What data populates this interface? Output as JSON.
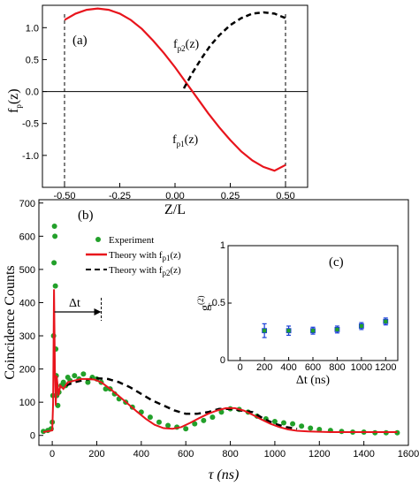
{
  "chart_data": [
    {
      "panel_label": "(a)",
      "type": "line",
      "xlabel": "Z/L",
      "ylabel_main": "f",
      "ylabel_sub": "p",
      "ylabel_tail": "(z)",
      "xlim": [
        -0.6,
        0.6
      ],
      "ylim": [
        -1.5,
        1.35
      ],
      "xticks": [
        -0.5,
        -0.25,
        0.0,
        0.25,
        0.5
      ],
      "xtick_labels": [
        "-0.50",
        "-0.25",
        "0.00",
        "0.25",
        "0.50"
      ],
      "yticks": [
        -1.0,
        -0.5,
        0.0,
        0.5,
        1.0
      ],
      "ytick_labels": [
        "-1.0",
        "-0.5",
        "0.0",
        "0.5",
        "1.0"
      ],
      "vlines": [
        -0.5,
        0.5
      ],
      "hline": 0,
      "series": [
        {
          "label_main": "f",
          "label_sub": "p1",
          "label_tail": "(z)",
          "color": "#e8141c",
          "style": "solid",
          "x": [
            -0.5,
            -0.45,
            -0.4,
            -0.35,
            -0.3,
            -0.25,
            -0.2,
            -0.15,
            -0.1,
            -0.05,
            0.0,
            0.05,
            0.1,
            0.15,
            0.2,
            0.25,
            0.3,
            0.35,
            0.4,
            0.45,
            0.5
          ],
          "y": [
            1.12,
            1.22,
            1.28,
            1.3,
            1.28,
            1.22,
            1.12,
            0.98,
            0.8,
            0.6,
            0.38,
            0.14,
            -0.1,
            -0.34,
            -0.56,
            -0.76,
            -0.94,
            -1.08,
            -1.18,
            -1.24,
            -1.15
          ]
        },
        {
          "label_main": "f",
          "label_sub": "p2",
          "label_tail": "(z)",
          "color": "#000000",
          "style": "dashed",
          "x": [
            0.04,
            0.08,
            0.12,
            0.16,
            0.2,
            0.25,
            0.3,
            0.35,
            0.4,
            0.45,
            0.5
          ],
          "y": [
            0.05,
            0.3,
            0.52,
            0.72,
            0.88,
            1.04,
            1.15,
            1.22,
            1.24,
            1.22,
            1.15
          ]
        }
      ]
    },
    {
      "panel_label": "(b)",
      "type": "scatter",
      "xlabel": "τ (ns)",
      "ylabel": "Coincidence Counts",
      "xlim": [
        -60,
        1600
      ],
      "ylim": [
        -30,
        710
      ],
      "xticks": [
        0,
        200,
        400,
        600,
        800,
        1000,
        1200,
        1400,
        1600
      ],
      "yticks": [
        0,
        100,
        200,
        300,
        400,
        500,
        600,
        700
      ],
      "annotation": "Δt",
      "annotation_arrow_x": [
        10,
        220
      ],
      "annotation_arrow_y": 372,
      "legend": [
        {
          "label": "Experiment",
          "marker": "dot",
          "color": "#22a02a"
        },
        {
          "label_main": "Theory with f",
          "label_sub": "p1",
          "label_tail": "(z)",
          "color": "#e8141c",
          "style": "solid"
        },
        {
          "label_main": "Theory with f",
          "label_sub": "p2",
          "label_tail": "(z)",
          "color": "#000000",
          "style": "dashed"
        }
      ],
      "series": [
        {
          "name": "Experiment",
          "color": "#22a02a",
          "x": [
            -40,
            -20,
            -5,
            0,
            3,
            6,
            8,
            10,
            12,
            14,
            16,
            18,
            20,
            25,
            30,
            40,
            50,
            60,
            70,
            80,
            100,
            120,
            140,
            160,
            180,
            200,
            220,
            240,
            260,
            280,
            300,
            330,
            360,
            400,
            440,
            480,
            520,
            560,
            600,
            640,
            680,
            720,
            760,
            800,
            840,
            880,
            920,
            960,
            1000,
            1040,
            1080,
            1120,
            1160,
            1200,
            1250,
            1300,
            1350,
            1400,
            1450,
            1500,
            1550
          ],
          "y": [
            12,
            15,
            20,
            40,
            120,
            300,
            520,
            630,
            600,
            450,
            260,
            180,
            120,
            90,
            130,
            150,
            160,
            150,
            175,
            165,
            180,
            170,
            185,
            160,
            175,
            170,
            160,
            140,
            140,
            125,
            110,
            100,
            85,
            70,
            55,
            40,
            30,
            25,
            20,
            35,
            45,
            55,
            70,
            80,
            78,
            70,
            58,
            50,
            42,
            38,
            35,
            28,
            22,
            18,
            15,
            12,
            10,
            10,
            8,
            8,
            8
          ]
        },
        {
          "name": "Theory with f_p1(z)",
          "color": "#e8141c",
          "style": "solid",
          "x": [
            -40,
            0,
            4,
            8,
            12,
            16,
            20,
            28,
            36,
            50,
            70,
            100,
            130,
            160,
            190,
            220,
            260,
            300,
            340,
            380,
            420,
            460,
            500,
            540,
            580,
            620,
            660,
            700,
            740,
            780,
            820,
            860,
            900,
            940,
            980,
            1020,
            1060,
            1100,
            1150,
            1200,
            1250,
            1300,
            1350,
            1400,
            1450,
            1500,
            1550
          ],
          "y": [
            10,
            15,
            100,
            440,
            200,
            90,
            180,
            120,
            150,
            140,
            160,
            165,
            170,
            170,
            168,
            160,
            140,
            118,
            95,
            72,
            50,
            32,
            22,
            20,
            25,
            38,
            52,
            65,
            75,
            82,
            82,
            75,
            62,
            48,
            35,
            25,
            18,
            14,
            12,
            11,
            10,
            10,
            10,
            10,
            10,
            10,
            10
          ]
        },
        {
          "name": "Theory with f_p2(z)",
          "color": "#000000",
          "style": "dashed",
          "x": [
            60,
            100,
            150,
            200,
            250,
            300,
            350,
            400,
            450,
            500,
            550,
            600,
            650,
            700,
            750,
            800,
            850,
            900,
            950,
            1000,
            1050,
            1100
          ],
          "y": [
            150,
            160,
            168,
            172,
            170,
            160,
            145,
            125,
            105,
            90,
            75,
            65,
            65,
            70,
            80,
            80,
            75,
            70,
            50,
            35,
            25,
            20
          ]
        }
      ]
    },
    {
      "panel_label": "(c)",
      "type": "scatter",
      "xlabel": "Δt (ns)",
      "ylabel_main": "g",
      "ylabel_sub": "c",
      "ylabel_sup": "(2)",
      "xlim": [
        -100,
        1300
      ],
      "ylim": [
        0,
        1
      ],
      "xticks": [
        0,
        200,
        400,
        600,
        800,
        1000,
        1200
      ],
      "yticks": [
        0.0,
        0.5,
        1.0
      ],
      "ytick_labels": [
        "0",
        "0.5",
        "1"
      ],
      "series": [
        {
          "name": "g_c(2)",
          "color": "#1a3fd8",
          "marker_fill": "#22a02a",
          "x": [
            200,
            400,
            600,
            800,
            1000,
            1200
          ],
          "y": [
            0.26,
            0.26,
            0.26,
            0.27,
            0.3,
            0.34
          ],
          "err": [
            0.06,
            0.04,
            0.03,
            0.03,
            0.03,
            0.03
          ]
        }
      ]
    }
  ]
}
